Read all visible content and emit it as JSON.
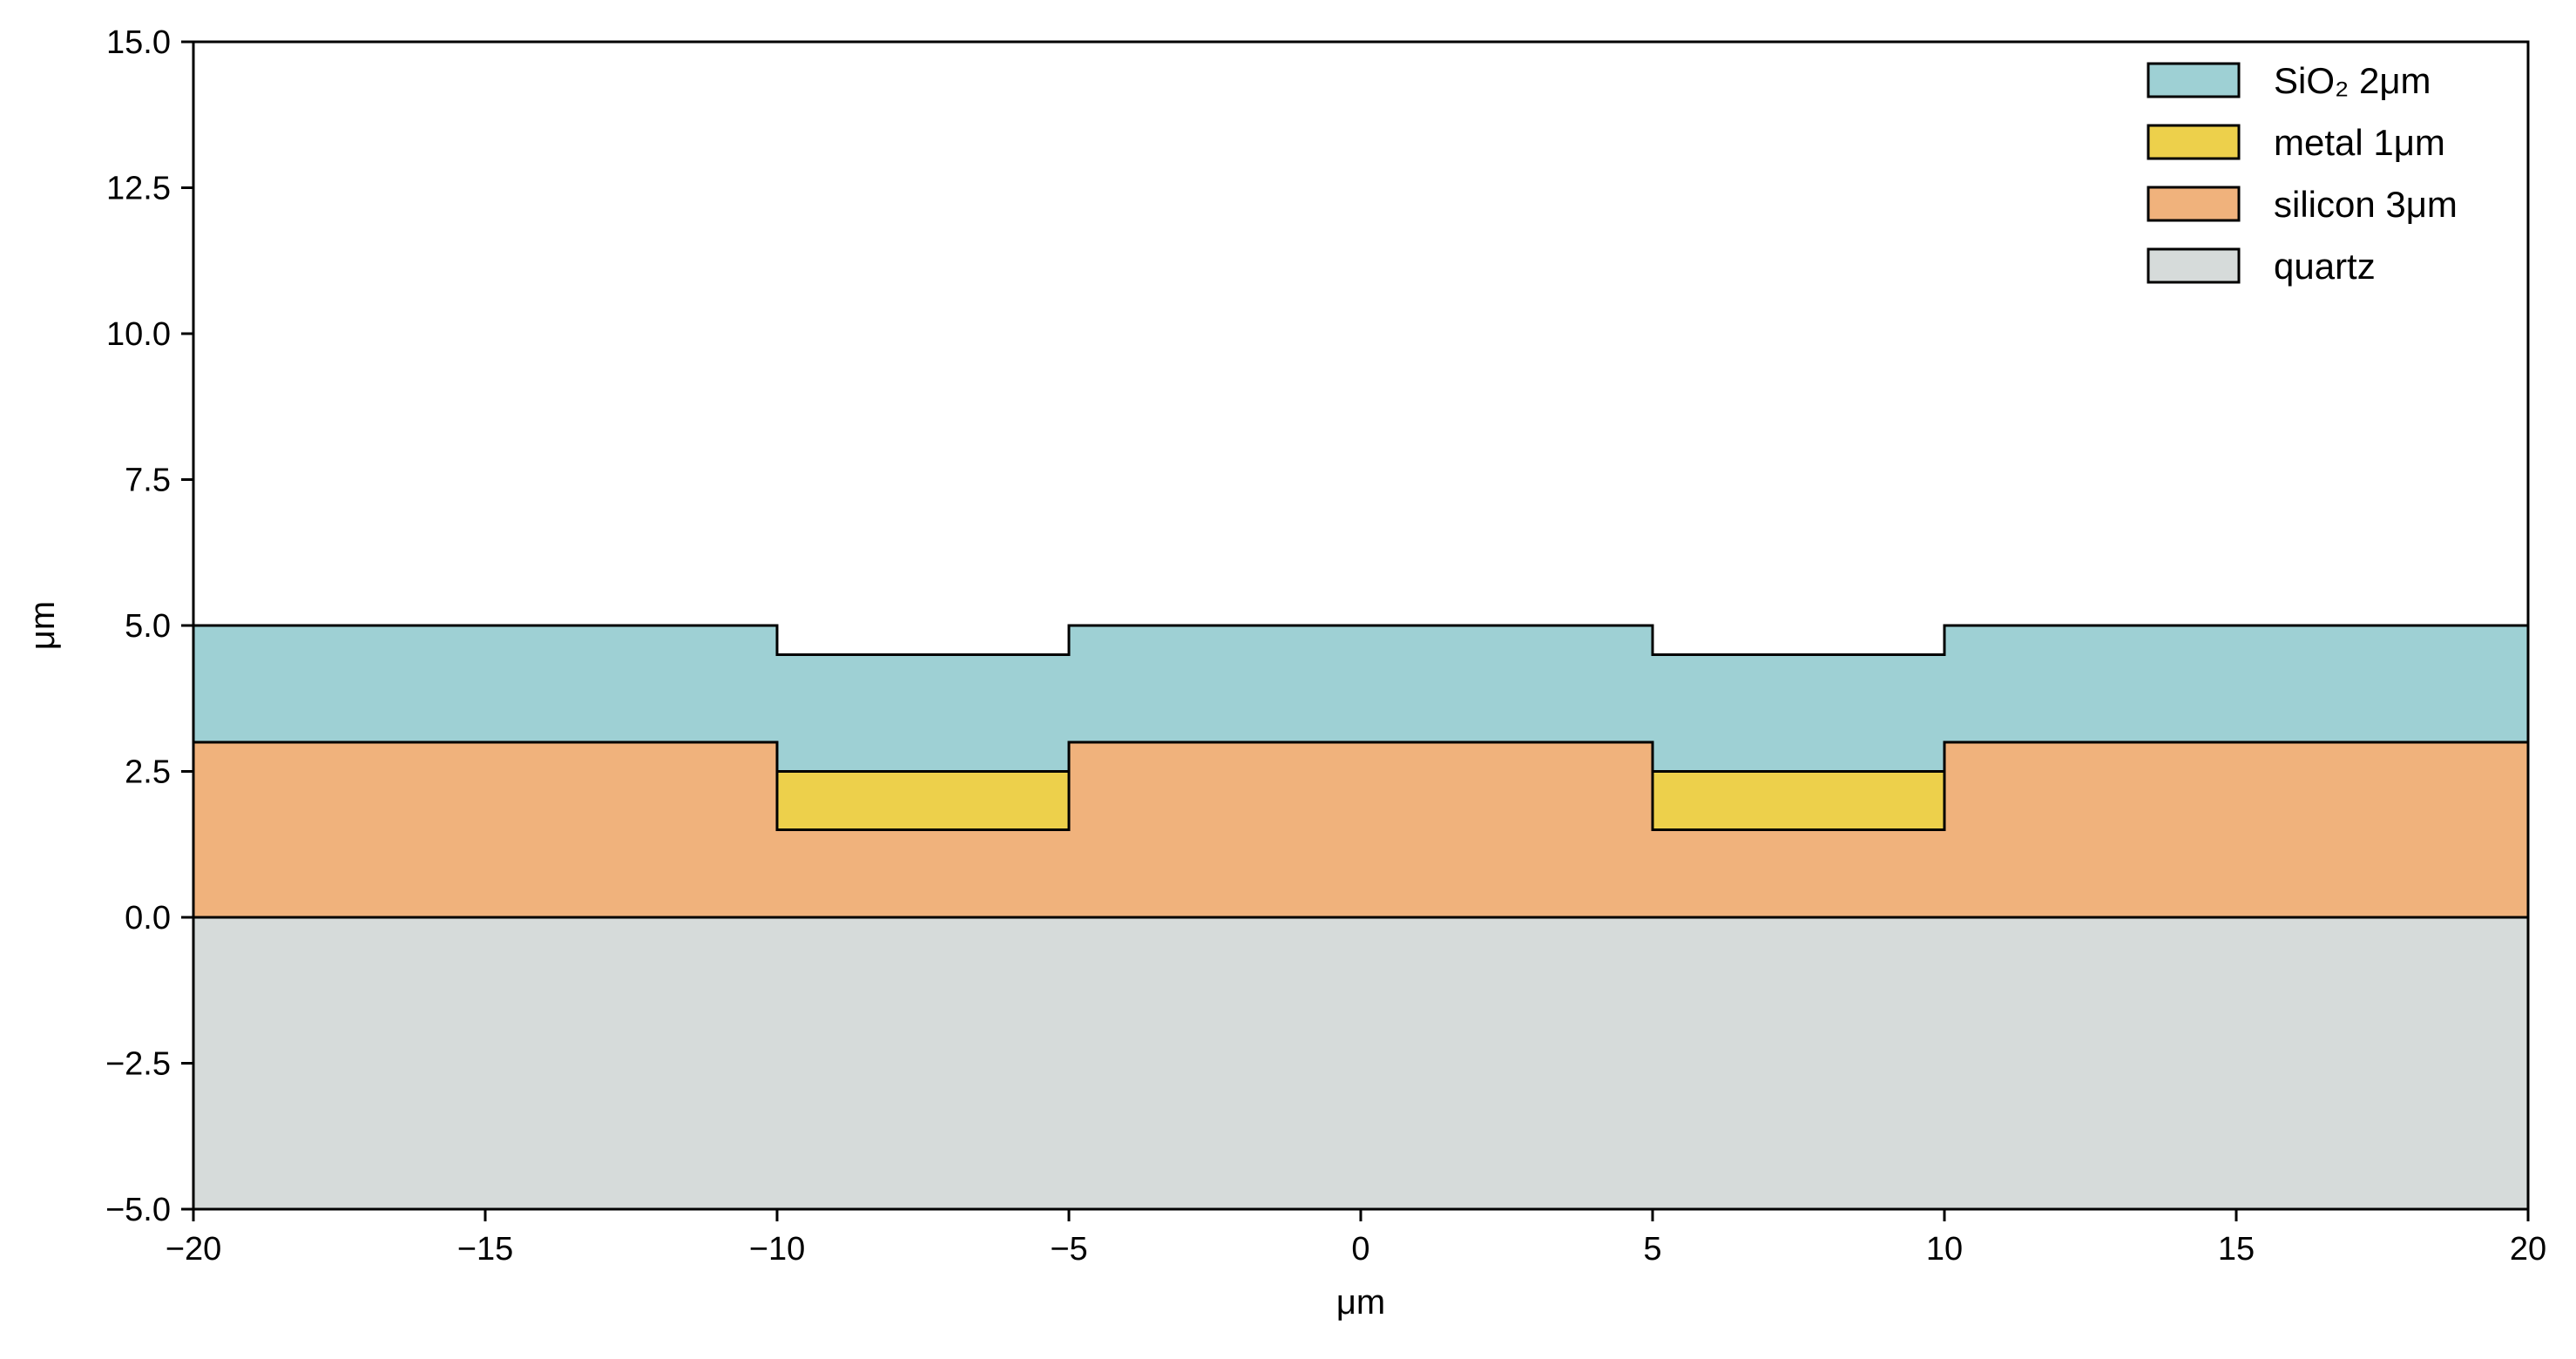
{
  "chart_data": {
    "type": "area",
    "title": "",
    "xlabel": "μm",
    "ylabel": "μm",
    "xlim": [
      -20,
      20
    ],
    "ylim": [
      -5,
      15
    ],
    "x_ticks": [
      -20,
      -15,
      -10,
      -5,
      0,
      5,
      10,
      15,
      20
    ],
    "x_tick_labels": [
      "−20",
      "−15",
      "−10",
      "−5",
      "0",
      "5",
      "10",
      "15",
      "20"
    ],
    "y_ticks": [
      -5,
      -2.5,
      0,
      2.5,
      5,
      7.5,
      10,
      12.5,
      15
    ],
    "y_tick_labels": [
      "−5.0",
      "−2.5",
      "0.0",
      "2.5",
      "5.0",
      "7.5",
      "10.0",
      "12.5",
      "15.0"
    ],
    "grid": false,
    "legend_position": "top-right",
    "edge_color": "#000000",
    "layers": [
      {
        "name": "quartz",
        "label": "quartz",
        "color": "#d6dbda",
        "polygon": [
          [
            -20,
            -5
          ],
          [
            20,
            -5
          ],
          [
            20,
            0
          ],
          [
            -20,
            0
          ]
        ]
      },
      {
        "name": "silicon",
        "label": "silicon 3μm",
        "color": "#f0b27c",
        "polygon": [
          [
            -20,
            0
          ],
          [
            20,
            0
          ],
          [
            20,
            3
          ],
          [
            10,
            3
          ],
          [
            10,
            1.5
          ],
          [
            5,
            1.5
          ],
          [
            5,
            3
          ],
          [
            -5,
            3
          ],
          [
            -5,
            1.5
          ],
          [
            -10,
            1.5
          ],
          [
            -10,
            3
          ],
          [
            -20,
            3
          ]
        ]
      },
      {
        "name": "metal",
        "label": "metal 1μm",
        "color": "#edd04b",
        "polygons": [
          [
            [
              -10,
              1.5
            ],
            [
              -5,
              1.5
            ],
            [
              -5,
              2.5
            ],
            [
              -10,
              2.5
            ]
          ],
          [
            [
              5,
              1.5
            ],
            [
              10,
              1.5
            ],
            [
              10,
              2.5
            ],
            [
              5,
              2.5
            ]
          ]
        ]
      },
      {
        "name": "sio2",
        "label": "SiO₂ 2μm",
        "color": "#9ed0d4",
        "polygon": [
          [
            -20,
            3
          ],
          [
            -10,
            3
          ],
          [
            -10,
            2.5
          ],
          [
            -5,
            2.5
          ],
          [
            -5,
            3
          ],
          [
            5,
            3
          ],
          [
            5,
            2.5
          ],
          [
            10,
            2.5
          ],
          [
            10,
            3
          ],
          [
            20,
            3
          ],
          [
            20,
            5
          ],
          [
            10,
            5
          ],
          [
            10,
            4.5
          ],
          [
            5,
            4.5
          ],
          [
            5,
            5
          ],
          [
            -5,
            5
          ],
          [
            -5,
            4.5
          ],
          [
            -10,
            4.5
          ],
          [
            -10,
            5
          ],
          [
            -20,
            5
          ]
        ]
      }
    ],
    "legend": [
      {
        "label": "SiO₂ 2μm",
        "color": "#9ed0d4"
      },
      {
        "label": "metal 1μm",
        "color": "#edd04b"
      },
      {
        "label": "silicon 3μm",
        "color": "#f0b27c"
      },
      {
        "label": "quartz",
        "color": "#d6dbda"
      }
    ]
  }
}
